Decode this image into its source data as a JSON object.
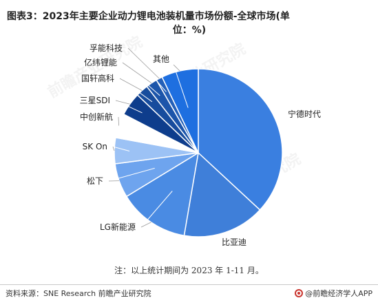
{
  "title": {
    "line1": "图表3：2023年主要企业动力锂电池装机量市场份额-全球市场(单",
    "line2": "位：%)"
  },
  "note": "注：以上统计期间为 2023 年 1-11 月。",
  "source": "资料来源：SNE Research 前瞻产业研究院",
  "brand": "@前瞻经济学人APP",
  "watermark": "前瞻产业研究院",
  "chart_data": {
    "type": "pie",
    "start_angle_deg": 0,
    "direction": "clockwise",
    "slices": [
      {
        "label": "宁德时代",
        "value": 36.9,
        "color": "#3a7fe0"
      },
      {
        "label": "比亚迪",
        "value": 15.8,
        "color": "#3f7fd9"
      },
      {
        "label": "LG新能源",
        "value": 13.6,
        "color": "#4a8be3"
      },
      {
        "label": "松下",
        "value": 6.6,
        "color": "#6ea4ee"
      },
      {
        "label": "SK On",
        "value": 5.0,
        "color": "#9cc2f5"
      },
      {
        "label": "中创新航",
        "value": 4.7,
        "color": "#ffffff"
      },
      {
        "label": "三星SDI",
        "value": 4.5,
        "color": "#0e3d8c"
      },
      {
        "label": "国轩高科",
        "value": 2.4,
        "color": "#174c9d"
      },
      {
        "label": "亿纬锂能",
        "value": 2.2,
        "color": "#1c55aa"
      },
      {
        "label": "孚能科技",
        "value": 1.2,
        "color": "#2460b8"
      },
      {
        "label": "其他",
        "value": 7.1,
        "color": "#1e6fe0"
      }
    ]
  }
}
